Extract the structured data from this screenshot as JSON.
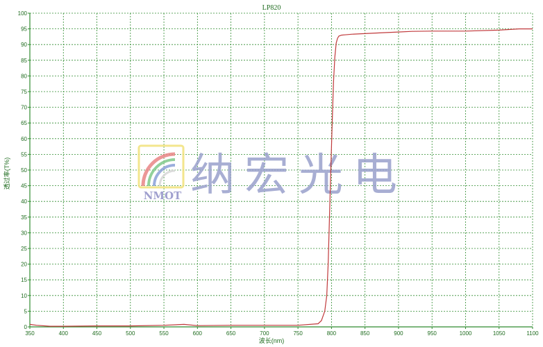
{
  "chart_data": {
    "type": "line",
    "title": "LP820",
    "xlabel": "波长(nm)",
    "ylabel": "透过率(T%)",
    "xlim": [
      350,
      1100
    ],
    "ylim": [
      0,
      100
    ],
    "xticks": [
      350,
      400,
      450,
      500,
      550,
      600,
      650,
      700,
      750,
      800,
      850,
      900,
      950,
      1000,
      1050,
      1100
    ],
    "yticks": [
      0,
      5,
      10,
      15,
      20,
      25,
      30,
      35,
      40,
      45,
      50,
      55,
      60,
      65,
      70,
      75,
      80,
      85,
      90,
      95,
      100
    ],
    "grid": true,
    "series": [
      {
        "x": [
          350,
          360,
          380,
          400,
          450,
          500,
          550,
          580,
          600,
          650,
          700,
          750,
          780,
          785,
          790,
          793,
          795,
          797,
          799,
          801,
          803,
          805,
          807,
          809,
          811,
          815,
          820,
          830,
          850,
          880,
          900,
          920,
          950,
          1000,
          1050,
          1080,
          1100
        ],
        "y": [
          0.8,
          0.5,
          0.2,
          0.2,
          0.3,
          0.3,
          0.5,
          0.8,
          0.4,
          0.5,
          0.5,
          0.5,
          1.0,
          2.0,
          5.0,
          10.0,
          20.0,
          35.0,
          50.0,
          65.0,
          78.0,
          86.0,
          90.5,
          92.0,
          92.7,
          93.0,
          93.1,
          93.3,
          93.5,
          93.8,
          94.0,
          94.2,
          94.3,
          94.3,
          94.6,
          95.0,
          95.0
        ],
        "color": "#c0393b"
      }
    ]
  },
  "watermark": {
    "logo_text": "NMOT",
    "company_text": "纳宏光电"
  },
  "colors": {
    "grid": "#2e8b2e",
    "text": "#1e6b1e",
    "curve": "#c0393b",
    "watermark_blue": "#9aa0cc",
    "logo_yellow": "#f2e27a"
  }
}
